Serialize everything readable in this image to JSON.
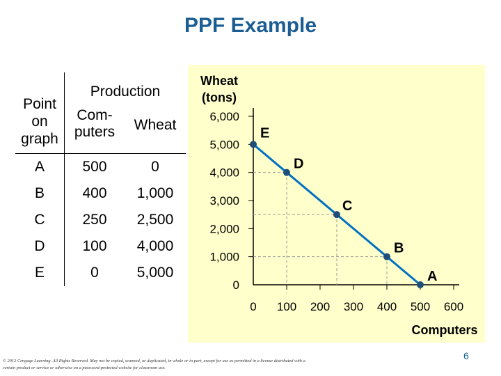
{
  "title": "PPF Example",
  "table": {
    "header_production": "Production",
    "header_point_lines": [
      "Point",
      "on",
      "graph"
    ],
    "header_computers_lines": [
      "Com-",
      "puters"
    ],
    "header_wheat": "Wheat",
    "rows": [
      {
        "point": "A",
        "computers": "500",
        "wheat": "0"
      },
      {
        "point": "B",
        "computers": "400",
        "wheat": "1,000"
      },
      {
        "point": "C",
        "computers": "250",
        "wheat": "2,500"
      },
      {
        "point": "D",
        "computers": "100",
        "wheat": "4,000"
      },
      {
        "point": "E",
        "computers": "0",
        "wheat": "5,000"
      }
    ]
  },
  "chart_data": {
    "type": "line",
    "ylabel_lines": [
      "Wheat",
      "(tons)"
    ],
    "xlabel": "Computers",
    "x_ticks": [
      0,
      100,
      200,
      300,
      400,
      500,
      600
    ],
    "x_tick_labels": [
      "0",
      "100",
      "200",
      "300",
      "400",
      "500",
      "600"
    ],
    "y_ticks": [
      0,
      1000,
      2000,
      3000,
      4000,
      5000,
      6000
    ],
    "y_tick_labels": [
      "0",
      "1,000",
      "2,000",
      "3,000",
      "4,000",
      "5,000",
      "6,000"
    ],
    "xlim": [
      0,
      600
    ],
    "ylim": [
      0,
      6000
    ],
    "points": [
      {
        "label": "E",
        "x": 0,
        "y": 5000
      },
      {
        "label": "D",
        "x": 100,
        "y": 4000
      },
      {
        "label": "C",
        "x": 250,
        "y": 2500
      },
      {
        "label": "B",
        "x": 400,
        "y": 1000
      },
      {
        "label": "A",
        "x": 500,
        "y": 0
      }
    ],
    "plot_background": "#ffffcc",
    "line_color": "#0070c0",
    "point_color": "#1f4e79",
    "guide_color": "#999999"
  },
  "copyright": "© 2012 Cengage Learning. All Rights Reserved. May not be copied, scanned, or duplicated, in whole or in part, except for use as permitted in a license distributed with a certain product or service or otherwise on a password-protected website for classroom use.",
  "page_number": "6"
}
